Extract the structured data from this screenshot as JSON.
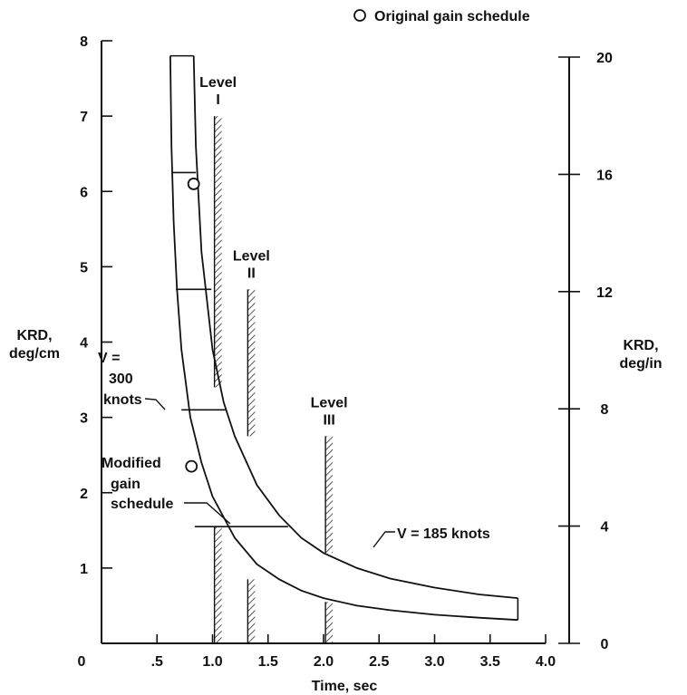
{
  "chart_data": {
    "type": "line",
    "xlabel": "Time, sec",
    "ylabel_left": [
      "KRD,",
      "deg/cm"
    ],
    "ylabel_right": [
      "KRD,",
      "deg/in"
    ],
    "xlim": [
      0,
      4.0
    ],
    "ylim_left": [
      0,
      8
    ],
    "ylim_right": [
      0,
      20
    ],
    "x_ticks": [
      "0",
      ".5",
      "1.0",
      "1.5",
      "2.0",
      "2.5",
      "3.0",
      "3.5",
      "4.0"
    ],
    "y_left_ticks": [
      "1",
      "2",
      "3",
      "4",
      "5",
      "6",
      "7",
      "8"
    ],
    "y_right_ticks": [
      "0",
      "4",
      "8",
      "12",
      "16",
      "20"
    ],
    "grid": false,
    "legend": {
      "label": "Original gain schedule",
      "placement": "top-right"
    },
    "series": [
      {
        "name": "V = 300 knots",
        "x": [
          0.62,
          0.63,
          0.65,
          0.68,
          0.72,
          0.8,
          0.9,
          1.0,
          1.2,
          1.4,
          1.6,
          1.8,
          2.0,
          2.3,
          2.6,
          3.0,
          3.4,
          3.75
        ],
        "y": [
          7.8,
          6.6,
          5.6,
          4.7,
          3.9,
          3.0,
          2.4,
          1.95,
          1.4,
          1.05,
          0.85,
          0.7,
          0.6,
          0.5,
          0.44,
          0.38,
          0.34,
          0.31
        ]
      },
      {
        "name": "V = 185 knots",
        "x": [
          0.83,
          0.85,
          0.9,
          1.0,
          1.1,
          1.2,
          1.4,
          1.6,
          1.8,
          2.0,
          2.3,
          2.6,
          3.0,
          3.4,
          3.75
        ],
        "y": [
          7.8,
          6.6,
          5.2,
          3.9,
          3.2,
          2.75,
          2.1,
          1.7,
          1.4,
          1.2,
          1.0,
          0.86,
          0.74,
          0.65,
          0.6
        ]
      }
    ],
    "gain_schedule_steps": [
      {
        "x_start": 0.62,
        "x_end": 0.83,
        "y": 7.8
      },
      {
        "x_start": 0.63,
        "x_end": 0.85,
        "y": 6.25
      },
      {
        "x_start": 0.67,
        "x_end": 0.99,
        "y": 4.7
      },
      {
        "x_start": 0.72,
        "x_end": 1.12,
        "y": 3.1
      },
      {
        "x_start": 0.84,
        "x_end": 1.68,
        "y": 1.55
      },
      {
        "x_start": 3.75,
        "x_end": 3.75,
        "y": 0.31,
        "y_end": 0.6
      }
    ],
    "original_gain_points": [
      {
        "x": 0.83,
        "y": 6.1
      },
      {
        "x": 0.81,
        "y": 2.35
      }
    ],
    "level_boundaries": [
      {
        "label_lines": [
          "Level",
          "I"
        ],
        "x": 1.05,
        "lower": [
          0,
          1.55
        ],
        "upper": [
          3.4,
          7.0
        ]
      },
      {
        "label_lines": [
          "Level",
          "II"
        ],
        "x": 1.35,
        "lower": [
          0,
          0.85
        ],
        "upper": [
          2.75,
          4.7
        ]
      },
      {
        "label_lines": [
          "Level",
          "III"
        ],
        "x": 2.05,
        "lower": [
          0,
          0.55
        ],
        "upper": [
          1.2,
          2.75
        ]
      }
    ],
    "annotations": [
      {
        "lines": [
          "V  =",
          "300",
          "knots"
        ]
      },
      {
        "lines": [
          "Modified",
          "gain",
          "schedule"
        ]
      },
      {
        "lines": [
          "V  =  185 knots"
        ]
      }
    ]
  }
}
